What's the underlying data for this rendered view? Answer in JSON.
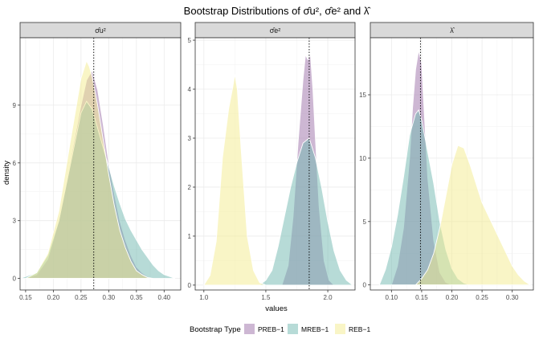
{
  "chart_data": {
    "type": "area",
    "title": "Bootstrap Distributions of σ̂u², σ̂e² and λ̂",
    "xlabel": "values",
    "ylabel": "density",
    "legend": {
      "title": "Bootstrap Type",
      "position": "bottom",
      "entries": [
        {
          "name": "PREB−1",
          "color": "#9b6fa8"
        },
        {
          "name": "MREB−1",
          "color": "#6fb8b0"
        },
        {
          "name": "REB−1",
          "color": "#f4ec8e"
        }
      ]
    },
    "panels": [
      {
        "strip": "σ̂u²",
        "xlim": [
          0.14,
          0.43
        ],
        "ylim": [
          -0.6,
          12.5
        ],
        "xticks": [
          0.15,
          0.2,
          0.25,
          0.3,
          0.35,
          0.4
        ],
        "xtick_labels": [
          "0.15",
          "0.20",
          "0.25",
          "0.30",
          "0.35",
          "0.40"
        ],
        "yticks": [
          0,
          3,
          6,
          9
        ],
        "ytick_labels": [
          "0",
          "3",
          "6",
          "9"
        ],
        "vline": 0.273,
        "series": [
          {
            "name": "PREB−1",
            "x": [
              0.15,
              0.17,
              0.19,
              0.21,
              0.23,
              0.25,
              0.26,
              0.27,
              0.28,
              0.29,
              0.3,
              0.31,
              0.32,
              0.33,
              0.34,
              0.35,
              0.36,
              0.37,
              0.38
            ],
            "y": [
              0,
              0.2,
              1.0,
              3.0,
              6.0,
              9.0,
              10.3,
              10.8,
              9.8,
              8.0,
              6.0,
              4.4,
              3.0,
              2.0,
              1.2,
              0.6,
              0.3,
              0.1,
              0
            ]
          },
          {
            "name": "MREB−1",
            "x": [
              0.14,
              0.17,
              0.19,
              0.21,
              0.23,
              0.25,
              0.26,
              0.27,
              0.28,
              0.29,
              0.3,
              0.31,
              0.32,
              0.33,
              0.34,
              0.35,
              0.36,
              0.37,
              0.38,
              0.39,
              0.4,
              0.41,
              0.42
            ],
            "y": [
              0,
              0.3,
              1.2,
              3.0,
              5.8,
              8.6,
              9.2,
              8.8,
              7.8,
              6.8,
              5.8,
              4.8,
              3.9,
              3.1,
              2.5,
              2.0,
              1.5,
              1.1,
              0.7,
              0.4,
              0.2,
              0.1,
              0
            ]
          },
          {
            "name": "REB−1",
            "x": [
              0.15,
              0.17,
              0.19,
              0.21,
              0.23,
              0.25,
              0.26,
              0.265,
              0.27,
              0.28,
              0.29,
              0.3,
              0.31,
              0.32,
              0.33,
              0.34,
              0.35,
              0.36,
              0.37,
              0.38
            ],
            "y": [
              0,
              0.3,
              1.3,
              3.5,
              7.0,
              10.4,
              11.3,
              11.0,
              10.5,
              9.0,
              7.2,
              5.4,
              3.8,
              2.5,
              1.6,
              0.9,
              0.4,
              0.2,
              0.05,
              0
            ]
          }
        ]
      },
      {
        "strip": "σ̂e²",
        "xlim": [
          0.93,
          2.22
        ],
        "ylim": [
          -0.1,
          5.05
        ],
        "xticks": [
          1.0,
          1.5,
          2.0
        ],
        "xtick_labels": [
          "1.0",
          "1.5",
          "2.0"
        ],
        "yticks": [
          0,
          1,
          2,
          3,
          4,
          5
        ],
        "ytick_labels": [
          "0",
          "1",
          "2",
          "3",
          "4",
          "5"
        ],
        "vline": 1.85,
        "series": [
          {
            "name": "PREB−1",
            "x": [
              1.63,
              1.68,
              1.72,
              1.76,
              1.8,
              1.82,
              1.84,
              1.86,
              1.88,
              1.9,
              1.93,
              1.97,
              2.01,
              2.05
            ],
            "y": [
              0,
              0.4,
              1.4,
              2.9,
              4.2,
              4.7,
              4.6,
              4.7,
              4.0,
              3.0,
              1.6,
              0.5,
              0.1,
              0
            ]
          },
          {
            "name": "MREB−1",
            "x": [
              1.45,
              1.5,
              1.55,
              1.6,
              1.65,
              1.7,
              1.75,
              1.8,
              1.85,
              1.9,
              1.95,
              2.0,
              2.05,
              2.1,
              2.15,
              2.2
            ],
            "y": [
              0,
              0.1,
              0.3,
              0.8,
              1.4,
              2.0,
              2.5,
              2.9,
              3.0,
              2.6,
              2.0,
              1.3,
              0.7,
              0.3,
              0.1,
              0
            ]
          },
          {
            "name": "REB−1",
            "x": [
              1.0,
              1.05,
              1.1,
              1.15,
              1.2,
              1.23,
              1.25,
              1.27,
              1.3,
              1.35,
              1.4,
              1.45,
              1.5
            ],
            "y": [
              0,
              0.2,
              0.9,
              2.6,
              3.6,
              4.0,
              4.3,
              4.0,
              2.8,
              1.0,
              0.3,
              0.05,
              0
            ]
          }
        ]
      },
      {
        "strip": "λ̂",
        "xlim": [
          0.065,
          0.335
        ],
        "ylim": [
          -0.4,
          19.5
        ],
        "xticks": [
          0.1,
          0.15,
          0.2,
          0.25,
          0.3
        ],
        "xtick_labels": [
          "0.10",
          "0.15",
          "0.20",
          "0.25",
          "0.30"
        ],
        "yticks": [
          0,
          5,
          10,
          15
        ],
        "ytick_labels": [
          "0",
          "5",
          "10",
          "15"
        ],
        "vline": 0.148,
        "series": [
          {
            "name": "PREB−1",
            "x": [
              0.1,
              0.11,
              0.12,
              0.13,
              0.135,
              0.14,
              0.145,
              0.15,
              0.155,
              0.16,
              0.17,
              0.18,
              0.19,
              0.2
            ],
            "y": [
              0,
              1.5,
              4.5,
              10.0,
              14.0,
              17.0,
              18.5,
              17.5,
              13.0,
              8.5,
              3.5,
              1.0,
              0.2,
              0
            ]
          },
          {
            "name": "MREB−1",
            "x": [
              0.08,
              0.09,
              0.1,
              0.11,
              0.12,
              0.13,
              0.14,
              0.145,
              0.15,
              0.16,
              0.17,
              0.18,
              0.19,
              0.2,
              0.21,
              0.22,
              0.23
            ],
            "y": [
              0,
              1.2,
              3.0,
              5.5,
              8.5,
              11.8,
              13.5,
              13.8,
              13.0,
              10.5,
              8.0,
              5.0,
              2.8,
              1.3,
              0.5,
              0.15,
              0
            ]
          },
          {
            "name": "REB−1",
            "x": [
              0.14,
              0.15,
              0.16,
              0.17,
              0.18,
              0.19,
              0.2,
              0.21,
              0.22,
              0.23,
              0.24,
              0.25,
              0.26,
              0.27,
              0.28,
              0.29,
              0.3,
              0.31,
              0.32,
              0.33
            ],
            "y": [
              0,
              0.5,
              1.2,
              2.5,
              4.5,
              7.0,
              9.5,
              11.0,
              10.8,
              9.5,
              8.0,
              6.5,
              5.5,
              4.5,
              3.5,
              2.5,
              1.5,
              0.8,
              0.3,
              0
            ]
          }
        ]
      }
    ]
  }
}
